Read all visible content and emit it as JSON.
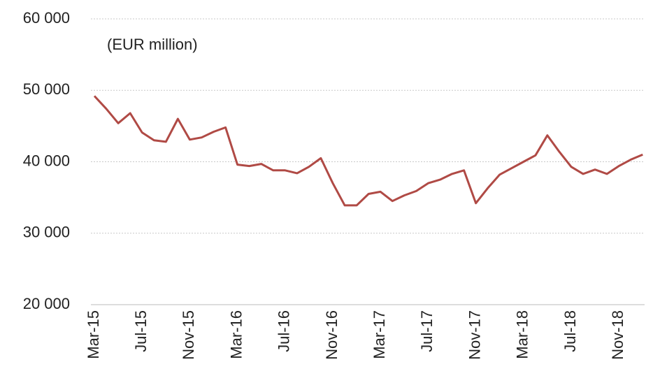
{
  "chart_data": {
    "type": "line",
    "annotation": "(EUR million)",
    "categories": [
      "Mar-15",
      null,
      null,
      null,
      "Jul-15",
      null,
      null,
      null,
      "Nov-15",
      null,
      null,
      null,
      "Mar-16",
      null,
      null,
      null,
      "Jul-16",
      null,
      null,
      null,
      "Nov-16",
      null,
      null,
      null,
      "Mar-17",
      null,
      null,
      null,
      "Jul-17",
      null,
      null,
      null,
      "Nov-17",
      null,
      null,
      null,
      "Mar-18",
      null,
      null,
      null,
      "Jul-18",
      null,
      null,
      null,
      "Nov-18",
      null,
      null
    ],
    "values": [
      49200,
      47400,
      45400,
      46800,
      44100,
      43000,
      42800,
      46000,
      43100,
      43400,
      44200,
      44800,
      39600,
      39400,
      39700,
      38800,
      38800,
      38400,
      39300,
      40500,
      37000,
      33900,
      33900,
      35500,
      35800,
      34500,
      35300,
      35900,
      37000,
      37500,
      38300,
      38800,
      34200,
      36300,
      38200,
      39100,
      40000,
      40900,
      43700,
      41400,
      39300,
      38300,
      38900,
      38300,
      39400,
      40300,
      41000
    ],
    "color": "#b04a45",
    "ylim": [
      20000,
      60000
    ],
    "yticks": [
      {
        "value": 20000,
        "label": "20 000"
      },
      {
        "value": 30000,
        "label": "30 000"
      },
      {
        "value": 40000,
        "label": "40 000"
      },
      {
        "value": 50000,
        "label": "50 000"
      },
      {
        "value": 60000,
        "label": "60 000"
      }
    ],
    "grid": true
  }
}
